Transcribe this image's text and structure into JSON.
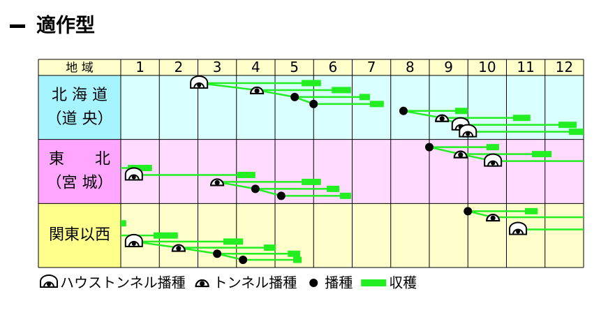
{
  "title": "適作型",
  "table": {
    "corner": "地 域",
    "months": [
      1,
      2,
      3,
      4,
      5,
      6,
      7,
      8,
      9,
      10,
      11,
      12
    ],
    "header_color": "#ffffcc",
    "rows": [
      {
        "label": [
          "北 海 道",
          "（道 央）"
        ],
        "label_color": "#a6f4ff",
        "cell_color": "#d9ffff",
        "entries": [
          {
            "type": "house-tunnel",
            "sow": 3.03,
            "harvest": [
              5.69,
              6.19
            ]
          },
          {
            "type": "tunnel",
            "sow": 4.53,
            "harvest": [
              6.47,
              6.97
            ]
          },
          {
            "type": "sowing",
            "sow": 5.51,
            "harvest": [
              7.19,
              7.46
            ]
          },
          {
            "type": "sowing",
            "sow": 6.0,
            "harvest": [
              7.46,
              7.82
            ]
          },
          {
            "type": "sowing",
            "sow": 8.33,
            "harvest": [
              9.67,
              10.0
            ]
          },
          {
            "type": "tunnel",
            "sow": 9.33,
            "harvest": [
              11.17,
              11.62
            ]
          },
          {
            "type": "house-tunnel",
            "sow": 9.81,
            "harvest": [
              12.35,
              12.82
            ]
          },
          {
            "type": "house-tunnel",
            "sow": 10.0,
            "harvest": [
              12.62,
              13.0
            ]
          }
        ]
      },
      {
        "label": [
          "東　　北",
          "（宮 城）"
        ],
        "label_color": "#ffa6ff",
        "cell_color": "#ffdcff",
        "entries": [
          {
            "type": "sowing",
            "sow": 9.0,
            "harvest": [
              10.48,
              10.81
            ]
          },
          {
            "type": "tunnel",
            "sow": 9.81,
            "harvest": [
              11.66,
              12.17
            ]
          },
          {
            "type": "house-tunnel",
            "sow": 10.65,
            "harvest": [
              13,
              13
            ]
          },
          {
            "type": "harvest",
            "harvest": [
              1.18,
              1.81
            ]
          },
          {
            "type": "house-tunnel",
            "sow": 1.34,
            "harvest": [
              4.02,
              4.49
            ]
          },
          {
            "type": "tunnel",
            "sow": 3.5,
            "harvest": [
              5.69,
              6.19
            ]
          },
          {
            "type": "sowing",
            "sow": 4.49,
            "harvest": [
              6.34,
              6.67
            ]
          },
          {
            "type": "sowing",
            "sow": 5.16,
            "harvest": [
              6.68,
              6.97
            ]
          }
        ]
      },
      {
        "label": [
          "関東以西"
        ],
        "label_color": "#ffff8c",
        "cell_color": "#ffffcc",
        "entries": [
          {
            "type": "sowing",
            "sow": 10.0,
            "harvest": [
              11.48,
              11.81
            ]
          },
          {
            "type": "tunnel",
            "sow": 10.65,
            "harvest": [
              13,
              13
            ]
          },
          {
            "type": "harvest",
            "harvest": [
              1.0,
              1.14
            ]
          },
          {
            "type": "house-tunnel",
            "sow": 11.3,
            "harvest": [
              13,
              13
            ]
          },
          {
            "type": "harvest",
            "harvest": [
              1.85,
              2.48
            ]
          },
          {
            "type": "house-tunnel",
            "sow": 1.34,
            "harvest": [
              3.66,
              4.17
            ]
          },
          {
            "type": "tunnel",
            "sow": 2.5,
            "harvest": [
              4.71,
              5.02
            ]
          },
          {
            "type": "sowing",
            "sow": 3.5,
            "harvest": [
              5.33,
              5.65
            ]
          },
          {
            "type": "sowing",
            "sow": 4.17,
            "harvest": [
              5.47,
              5.69
            ]
          }
        ]
      }
    ]
  },
  "legend": [
    {
      "type": "house-tunnel",
      "label": "ハウストンネル播種"
    },
    {
      "type": "tunnel",
      "label": "トンネル播種"
    },
    {
      "type": "sowing",
      "label": "播種"
    },
    {
      "type": "harvest",
      "label": "収穫"
    }
  ]
}
